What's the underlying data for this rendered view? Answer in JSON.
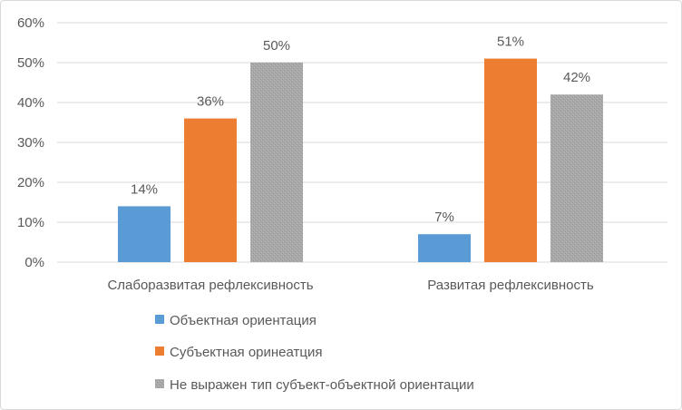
{
  "chart_data": {
    "type": "bar",
    "title": "",
    "xlabel": "",
    "ylabel": "",
    "categories": [
      "Слаборазвитая рефлексивность",
      "Развитая рефлексивность"
    ],
    "series": [
      {
        "name": "Объектная ориентация",
        "color": "#5b9bd5",
        "values": [
          14,
          7
        ]
      },
      {
        "name": "Субъектная оринеатция",
        "color": "#ed7d31",
        "values": [
          36,
          51
        ]
      },
      {
        "name": "Не выражен тип субъект-объектной ориентации",
        "color": "#a5a5a5",
        "values": [
          50,
          42
        ]
      }
    ],
    "ylim": [
      0,
      60
    ],
    "yticks": [
      0,
      10,
      20,
      30,
      40,
      50,
      60
    ],
    "value_format": "percent",
    "grid": true,
    "legend": "bottom"
  }
}
